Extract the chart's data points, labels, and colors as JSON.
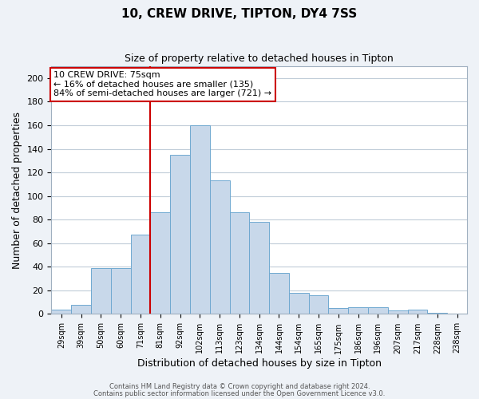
{
  "title1": "10, CREW DRIVE, TIPTON, DY4 7SS",
  "title2": "Size of property relative to detached houses in Tipton",
  "xlabel": "Distribution of detached houses by size in Tipton",
  "ylabel": "Number of detached properties",
  "bar_labels": [
    "29sqm",
    "39sqm",
    "50sqm",
    "60sqm",
    "71sqm",
    "81sqm",
    "92sqm",
    "102sqm",
    "113sqm",
    "123sqm",
    "134sqm",
    "144sqm",
    "154sqm",
    "165sqm",
    "175sqm",
    "186sqm",
    "196sqm",
    "207sqm",
    "217sqm",
    "228sqm",
    "238sqm"
  ],
  "bar_values": [
    4,
    8,
    39,
    39,
    67,
    86,
    135,
    160,
    113,
    86,
    78,
    35,
    18,
    16,
    5,
    6,
    6,
    3,
    4,
    1,
    0
  ],
  "bar_color": "#c8d8ea",
  "bar_edgecolor": "#6fa8d0",
  "vline_x": 5.0,
  "vline_color": "#cc0000",
  "annotation_text": "10 CREW DRIVE: 75sqm\n← 16% of detached houses are smaller (135)\n84% of semi-detached houses are larger (721) →",
  "annotation_box_edgecolor": "#cc0000",
  "ylim": [
    0,
    210
  ],
  "yticks": [
    0,
    20,
    40,
    60,
    80,
    100,
    120,
    140,
    160,
    180,
    200
  ],
  "footer1": "Contains HM Land Registry data © Crown copyright and database right 2024.",
  "footer2": "Contains public sector information licensed under the Open Government Licence v3.0.",
  "bg_color": "#eef2f7",
  "plot_bg_color": "#ffffff",
  "grid_color": "#c0ccd8"
}
